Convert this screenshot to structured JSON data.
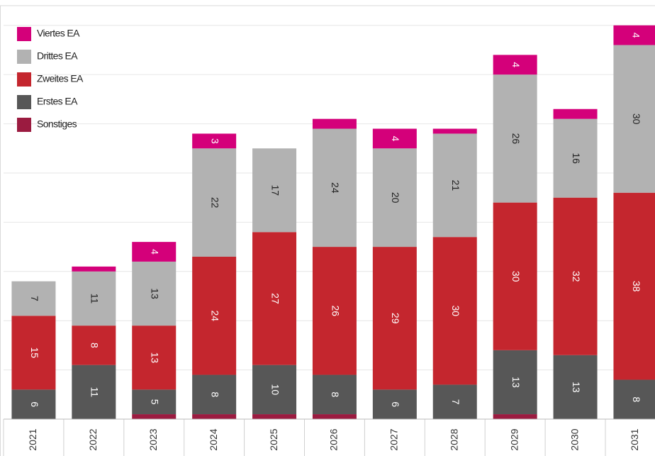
{
  "chart_data": {
    "type": "stacked_bar",
    "categories": [
      "2021",
      "2022",
      "2023",
      "2024",
      "2025",
      "2026",
      "2027",
      "2028",
      "2029",
      "2030",
      "2031"
    ],
    "series": [
      {
        "name": "Sonstiges",
        "color": "#9b1b40",
        "values": [
          0,
          0,
          1,
          1,
          1,
          1,
          0,
          0,
          1,
          0,
          0
        ]
      },
      {
        "name": "Erstes EA",
        "color": "#575757",
        "values": [
          6,
          11,
          5,
          8,
          10,
          8,
          6,
          7,
          13,
          13,
          8
        ]
      },
      {
        "name": "Zweites EA",
        "color": "#c4262e",
        "values": [
          15,
          8,
          13,
          24,
          27,
          26,
          29,
          30,
          30,
          32,
          38
        ]
      },
      {
        "name": "Drittes EA",
        "color": "#b2b2b2",
        "values": [
          7,
          11,
          13,
          22,
          17,
          24,
          20,
          21,
          26,
          16,
          30
        ]
      },
      {
        "name": "Viertes EA",
        "color": "#d4007a",
        "values": [
          0,
          1,
          4,
          3,
          0,
          2,
          4,
          1,
          4,
          2,
          4
        ]
      }
    ],
    "ylim": [
      0,
      84
    ],
    "yticks": [
      0,
      10,
      20,
      30,
      40,
      50,
      60,
      70,
      80
    ],
    "grid": true,
    "legend": "top-left"
  }
}
